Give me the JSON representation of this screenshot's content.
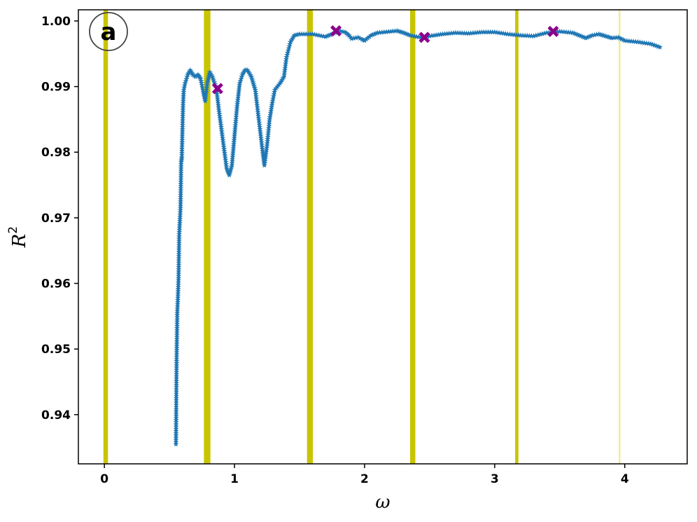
{
  "chart_data": {
    "type": "scatter",
    "title": "",
    "panel_label": "a",
    "xlabel": "ω",
    "ylabel": "R",
    "ylabel_exponent": "2",
    "xlim": [
      -0.2,
      4.48
    ],
    "ylim": [
      0.9325,
      1.0017
    ],
    "xticks": [
      0,
      1,
      2,
      3,
      4
    ],
    "yticks": [
      0.94,
      0.95,
      0.96,
      0.97,
      0.98,
      0.99,
      1.0
    ],
    "ytick_labels": [
      "0.94",
      "0.95",
      "0.96",
      "0.97",
      "0.98",
      "0.99",
      "1.00"
    ],
    "grid": false,
    "legend": "none",
    "colors": {
      "points": "#1f77b4",
      "markers": "#8b008b",
      "bands": "#c8c400",
      "faint_band": "#ede98a"
    },
    "vertical_bands": [
      {
        "x": 0.01,
        "width": 0.035,
        "opacity": 1.0
      },
      {
        "x": 0.79,
        "width": 0.05,
        "opacity": 1.0
      },
      {
        "x": 1.58,
        "width": 0.045,
        "opacity": 1.0
      },
      {
        "x": 2.37,
        "width": 0.04,
        "opacity": 1.0
      },
      {
        "x": 3.17,
        "width": 0.025,
        "opacity": 1.0
      },
      {
        "x": 3.96,
        "width": 0.012,
        "opacity": 0.5
      }
    ],
    "highlight_points": [
      {
        "x": 0.87,
        "y": 0.9897
      },
      {
        "x": 1.78,
        "y": 0.9985
      },
      {
        "x": 2.46,
        "y": 0.9975
      },
      {
        "x": 3.45,
        "y": 0.9984
      }
    ],
    "series_anchors": [
      [
        0.55,
        0.9355
      ],
      [
        0.555,
        0.9485
      ],
      [
        0.56,
        0.9555
      ],
      [
        0.565,
        0.9578
      ],
      [
        0.57,
        0.9608
      ],
      [
        0.575,
        0.9675
      ],
      [
        0.58,
        0.9695
      ],
      [
        0.585,
        0.9715
      ],
      [
        0.59,
        0.9785
      ],
      [
        0.595,
        0.9792
      ],
      [
        0.6,
        0.9835
      ],
      [
        0.605,
        0.9875
      ],
      [
        0.61,
        0.9895
      ],
      [
        0.62,
        0.9905
      ],
      [
        0.64,
        0.9918
      ],
      [
        0.66,
        0.9925
      ],
      [
        0.68,
        0.9918
      ],
      [
        0.7,
        0.9915
      ],
      [
        0.72,
        0.9918
      ],
      [
        0.74,
        0.9912
      ],
      [
        0.76,
        0.9892
      ],
      [
        0.775,
        0.9878
      ],
      [
        0.79,
        0.9905
      ],
      [
        0.81,
        0.9922
      ],
      [
        0.83,
        0.9915
      ],
      [
        0.86,
        0.9898
      ],
      [
        0.88,
        0.9865
      ],
      [
        0.9,
        0.9835
      ],
      [
        0.92,
        0.9805
      ],
      [
        0.94,
        0.9775
      ],
      [
        0.96,
        0.9765
      ],
      [
        0.98,
        0.978
      ],
      [
        1.0,
        0.9825
      ],
      [
        1.02,
        0.987
      ],
      [
        1.04,
        0.9905
      ],
      [
        1.06,
        0.9918
      ],
      [
        1.08,
        0.9925
      ],
      [
        1.1,
        0.9925
      ],
      [
        1.13,
        0.9915
      ],
      [
        1.16,
        0.9895
      ],
      [
        1.19,
        0.9845
      ],
      [
        1.22,
        0.9795
      ],
      [
        1.23,
        0.978
      ],
      [
        1.25,
        0.981
      ],
      [
        1.27,
        0.985
      ],
      [
        1.29,
        0.9875
      ],
      [
        1.31,
        0.9895
      ],
      [
        1.35,
        0.9905
      ],
      [
        1.38,
        0.9915
      ],
      [
        1.4,
        0.9945
      ],
      [
        1.43,
        0.9968
      ],
      [
        1.46,
        0.9978
      ],
      [
        1.5,
        0.998
      ],
      [
        1.55,
        0.998
      ],
      [
        1.6,
        0.998
      ],
      [
        1.65,
        0.9978
      ],
      [
        1.7,
        0.9976
      ],
      [
        1.75,
        0.998
      ],
      [
        1.8,
        0.9985
      ],
      [
        1.85,
        0.9983
      ],
      [
        1.88,
        0.9978
      ],
      [
        1.9,
        0.9973
      ],
      [
        1.95,
        0.9975
      ],
      [
        1.98,
        0.9972
      ],
      [
        2.0,
        0.997
      ],
      [
        2.05,
        0.9978
      ],
      [
        2.1,
        0.9982
      ],
      [
        2.15,
        0.9983
      ],
      [
        2.2,
        0.9984
      ],
      [
        2.25,
        0.9985
      ],
      [
        2.3,
        0.9982
      ],
      [
        2.35,
        0.9978
      ],
      [
        2.4,
        0.9976
      ],
      [
        2.45,
        0.9975
      ],
      [
        2.5,
        0.9977
      ],
      [
        2.6,
        0.998
      ],
      [
        2.7,
        0.9982
      ],
      [
        2.8,
        0.9981
      ],
      [
        2.9,
        0.9983
      ],
      [
        3.0,
        0.9983
      ],
      [
        3.1,
        0.998
      ],
      [
        3.2,
        0.9978
      ],
      [
        3.3,
        0.9977
      ],
      [
        3.4,
        0.9982
      ],
      [
        3.5,
        0.9984
      ],
      [
        3.6,
        0.9982
      ],
      [
        3.65,
        0.9978
      ],
      [
        3.7,
        0.9974
      ],
      [
        3.75,
        0.9978
      ],
      [
        3.8,
        0.998
      ],
      [
        3.85,
        0.9977
      ],
      [
        3.9,
        0.9974
      ],
      [
        3.95,
        0.9975
      ],
      [
        4.0,
        0.997
      ],
      [
        4.1,
        0.9968
      ],
      [
        4.2,
        0.9965
      ],
      [
        4.27,
        0.996
      ]
    ]
  }
}
